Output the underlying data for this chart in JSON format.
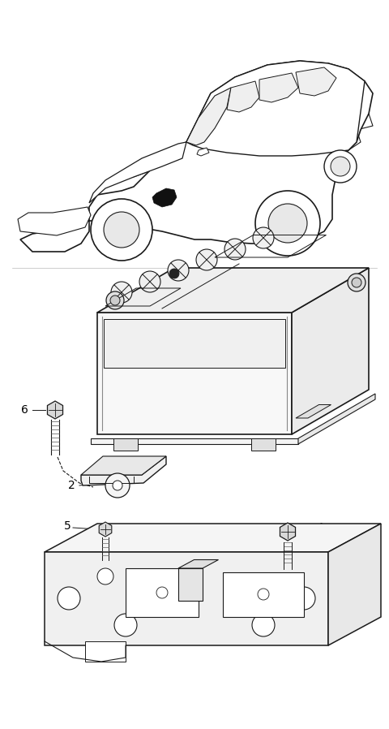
{
  "background_color": "#ffffff",
  "line_color": "#1a1a1a",
  "label_color": "#000000",
  "fig_width": 4.8,
  "fig_height": 8.98,
  "dpi": 100
}
